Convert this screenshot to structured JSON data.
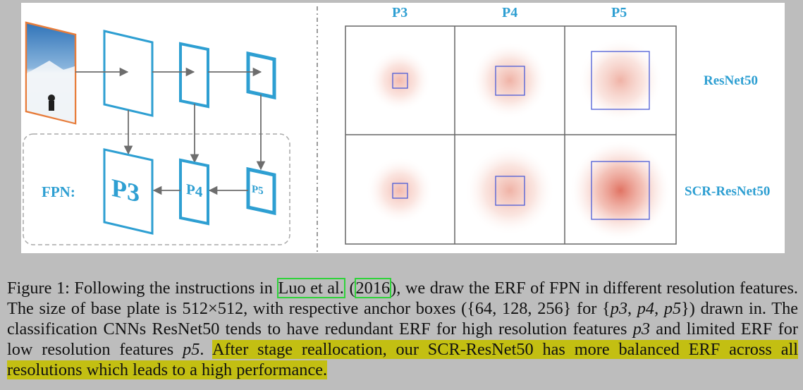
{
  "diagram": {
    "fpn_label": "FPN:",
    "level_labels": [
      "P3",
      "P4",
      "P5"
    ],
    "colors": {
      "accent": "#2e9fd2",
      "arrow": "#6d6d6d",
      "anchor_box": "#4b5bd6",
      "photo_frame": "#e77c3a",
      "heat": "#d94a3a"
    }
  },
  "erf_grid": {
    "col_headers": [
      "P3",
      "P4",
      "P5"
    ],
    "row_labels": [
      "ResNet50",
      "SCR-ResNet50"
    ],
    "anchor_sizes": [
      64,
      128,
      256
    ],
    "base_plate": 512
  },
  "caption": {
    "prefix": "Figure 1: Following the instructions in ",
    "cite_name": "Luo et al.",
    "cite_open": " (",
    "cite_year": "2016",
    "cite_close": ")",
    "text1": ", we draw the ERF of FPN in different resolution features. The size of base plate is 512×512, with respective anchor boxes ({64, 128, 256} for {",
    "p3": "p3",
    "p4": "p4",
    "p5": "p5",
    "text2": "}) drawn in. The classification CNNs ResNet50 tends to have redundant ERF for high resolution features ",
    "text3": " and limited ERF for low resolution features ",
    "text4": ".",
    "highlight": "After stage reallocation, our SCR-ResNet50 has more balanced ERF across all resolutions which leads to a high performance."
  }
}
